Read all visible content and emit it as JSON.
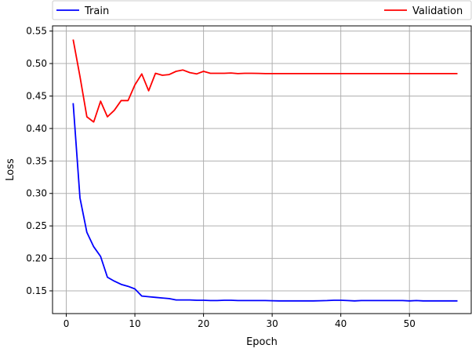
{
  "chart_data": {
    "type": "line",
    "title": "",
    "xlabel": "Epoch",
    "ylabel": "Loss",
    "xlim": [
      -2,
      59
    ],
    "ylim": [
      0.115,
      0.558
    ],
    "xticks": [
      0,
      10,
      20,
      30,
      40,
      50
    ],
    "yticks": [
      0.15,
      0.2,
      0.25,
      0.3,
      0.35,
      0.4,
      0.45,
      0.5,
      0.55
    ],
    "ytick_labels": [
      "0.15",
      "0.20",
      "0.25",
      "0.30",
      "0.35",
      "0.40",
      "0.45",
      "0.50",
      "0.55"
    ],
    "grid": true,
    "legend_position": "top",
    "x": [
      1,
      2,
      3,
      4,
      5,
      6,
      7,
      8,
      9,
      10,
      11,
      12,
      13,
      14,
      15,
      16,
      17,
      18,
      19,
      20,
      21,
      22,
      23,
      24,
      25,
      26,
      27,
      28,
      29,
      30,
      31,
      32,
      33,
      34,
      35,
      36,
      37,
      38,
      39,
      40,
      41,
      42,
      43,
      44,
      45,
      46,
      47,
      48,
      49,
      50,
      51,
      52,
      53,
      54,
      55,
      56,
      57
    ],
    "series": [
      {
        "name": "Train",
        "color": "#0000ff",
        "values": [
          0.439,
          0.293,
          0.24,
          0.218,
          0.203,
          0.171,
          0.165,
          0.16,
          0.157,
          0.153,
          0.142,
          0.141,
          0.14,
          0.139,
          0.138,
          0.136,
          0.136,
          0.136,
          0.1355,
          0.1355,
          0.135,
          0.135,
          0.1355,
          0.1355,
          0.135,
          0.135,
          0.135,
          0.135,
          0.135,
          0.1348,
          0.1345,
          0.1345,
          0.1345,
          0.1345,
          0.1345,
          0.1345,
          0.1348,
          0.135,
          0.1355,
          0.1355,
          0.135,
          0.1345,
          0.135,
          0.135,
          0.135,
          0.135,
          0.135,
          0.135,
          0.135,
          0.1345,
          0.135,
          0.1345,
          0.1345,
          0.1345,
          0.1345,
          0.1345,
          0.1345
        ]
      },
      {
        "name": "Validation",
        "color": "#ff0000",
        "values": [
          0.537,
          0.48,
          0.418,
          0.41,
          0.442,
          0.418,
          0.428,
          0.443,
          0.443,
          0.467,
          0.484,
          0.458,
          0.485,
          0.482,
          0.483,
          0.488,
          0.49,
          0.486,
          0.484,
          0.488,
          0.485,
          0.485,
          0.485,
          0.4855,
          0.4845,
          0.485,
          0.485,
          0.4848,
          0.4845,
          0.4845,
          0.4845,
          0.4845,
          0.4845,
          0.4845,
          0.4845,
          0.4845,
          0.4845,
          0.4845,
          0.4845,
          0.4845,
          0.4845,
          0.4845,
          0.4845,
          0.4845,
          0.4845,
          0.4845,
          0.4845,
          0.4845,
          0.4845,
          0.4845,
          0.4845,
          0.4845,
          0.4845,
          0.4845,
          0.4845,
          0.4845,
          0.4845
        ]
      }
    ]
  }
}
